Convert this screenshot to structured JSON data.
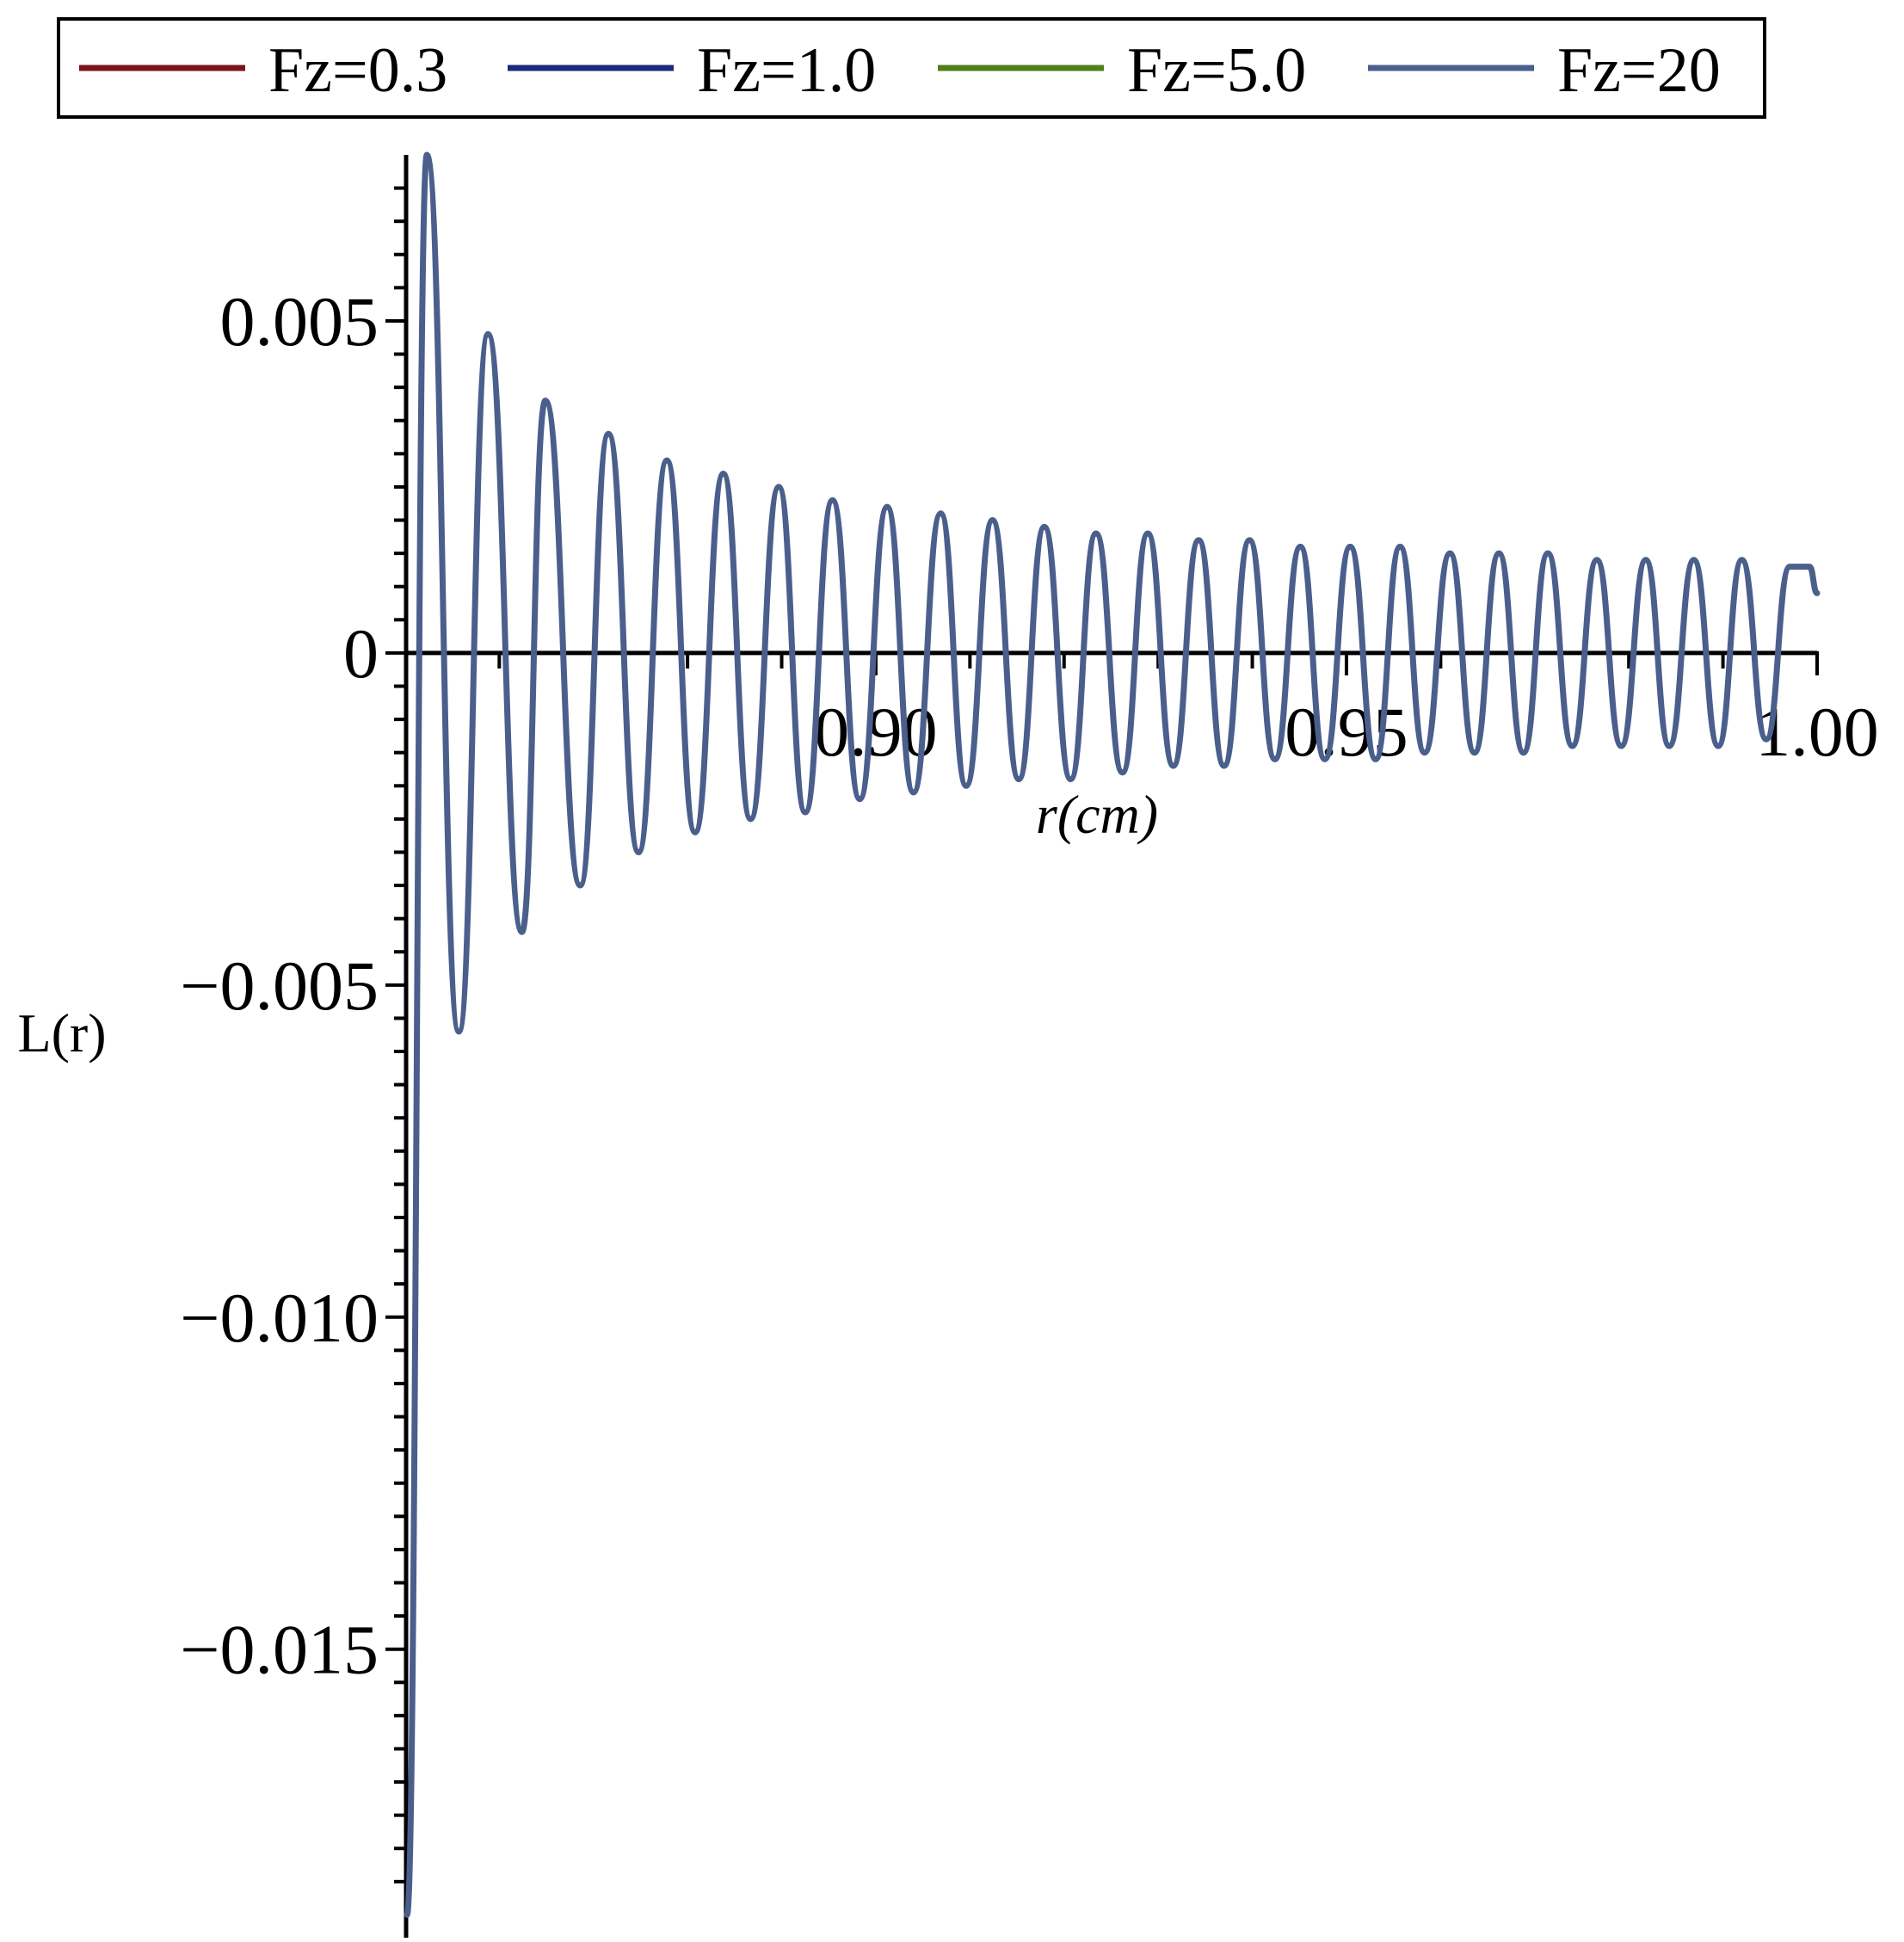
{
  "chart_data": {
    "type": "line",
    "xlabel": "r(cm)",
    "ylabel": "L(r)",
    "xlim": [
      0.8501,
      1.0
    ],
    "ylim": [
      -0.0188,
      0.0075
    ],
    "x_ticks": [
      0.9,
      0.95,
      1.0
    ],
    "x_tick_labels": [
      "0.90",
      "0.95",
      "1.00"
    ],
    "y_ticks": [
      -0.015,
      -0.01,
      -0.005,
      0,
      0.005
    ],
    "y_tick_labels": [
      "−0.015",
      "−0.010",
      "−0.005",
      "0",
      "0.005"
    ],
    "legend_position": "top",
    "grid": false,
    "colors": [
      "#7a1419",
      "#1b2a7a",
      "#4f7f1c",
      "#4a5f8c"
    ],
    "series": [
      {
        "name": "Fz=0.3",
        "values": []
      },
      {
        "name": "Fz=1.0",
        "values": []
      },
      {
        "name": "Fz=5.0",
        "values": []
      },
      {
        "name": "Fz=20",
        "x": [
          0.8502,
          0.8523,
          0.8557,
          0.8588,
          0.8624,
          0.8649,
          0.8686,
          0.8716,
          0.8748,
          0.8778,
          0.8808,
          0.8838,
          0.8867,
          0.8897,
          0.8925,
          0.8954,
          0.8983,
          0.9012,
          0.904,
          0.9069,
          0.9096,
          0.9124,
          0.9152,
          0.9179,
          0.9207,
          0.9234,
          0.9262,
          0.9289,
          0.9316,
          0.9343,
          0.937,
          0.9397,
          0.9424,
          0.9451,
          0.9477,
          0.9504,
          0.9531,
          0.9557,
          0.9583,
          0.961,
          0.9636,
          0.9662,
          0.9688,
          0.9714,
          0.974,
          0.9766,
          0.9792,
          0.9818,
          0.9843,
          0.9869,
          0.9895,
          0.992,
          0.9946,
          0.9971,
          0.9992,
          1.0
        ],
        "y": [
          -0.019,
          0.0075,
          -0.0057,
          0.0048,
          -0.0042,
          0.0038,
          -0.0035,
          0.0033,
          -0.003,
          0.0029,
          -0.0027,
          0.0027,
          -0.0025,
          0.0025,
          -0.0024,
          0.0023,
          -0.0022,
          0.0022,
          -0.0021,
          0.0021,
          -0.002,
          0.002,
          -0.0019,
          0.0019,
          -0.0019,
          0.0018,
          -0.0018,
          0.0018,
          -0.0017,
          0.0017,
          -0.0017,
          0.0017,
          -0.0016,
          0.0016,
          -0.0016,
          0.0016,
          -0.0016,
          0.0016,
          -0.0015,
          0.0015,
          -0.0015,
          0.0015,
          -0.0015,
          0.0015,
          -0.0014,
          0.0014,
          -0.0014,
          0.0014,
          -0.0014,
          0.0014,
          -0.0014,
          0.0014,
          -0.0013,
          0.0013,
          0.0013,
          0.0009
        ]
      }
    ]
  }
}
